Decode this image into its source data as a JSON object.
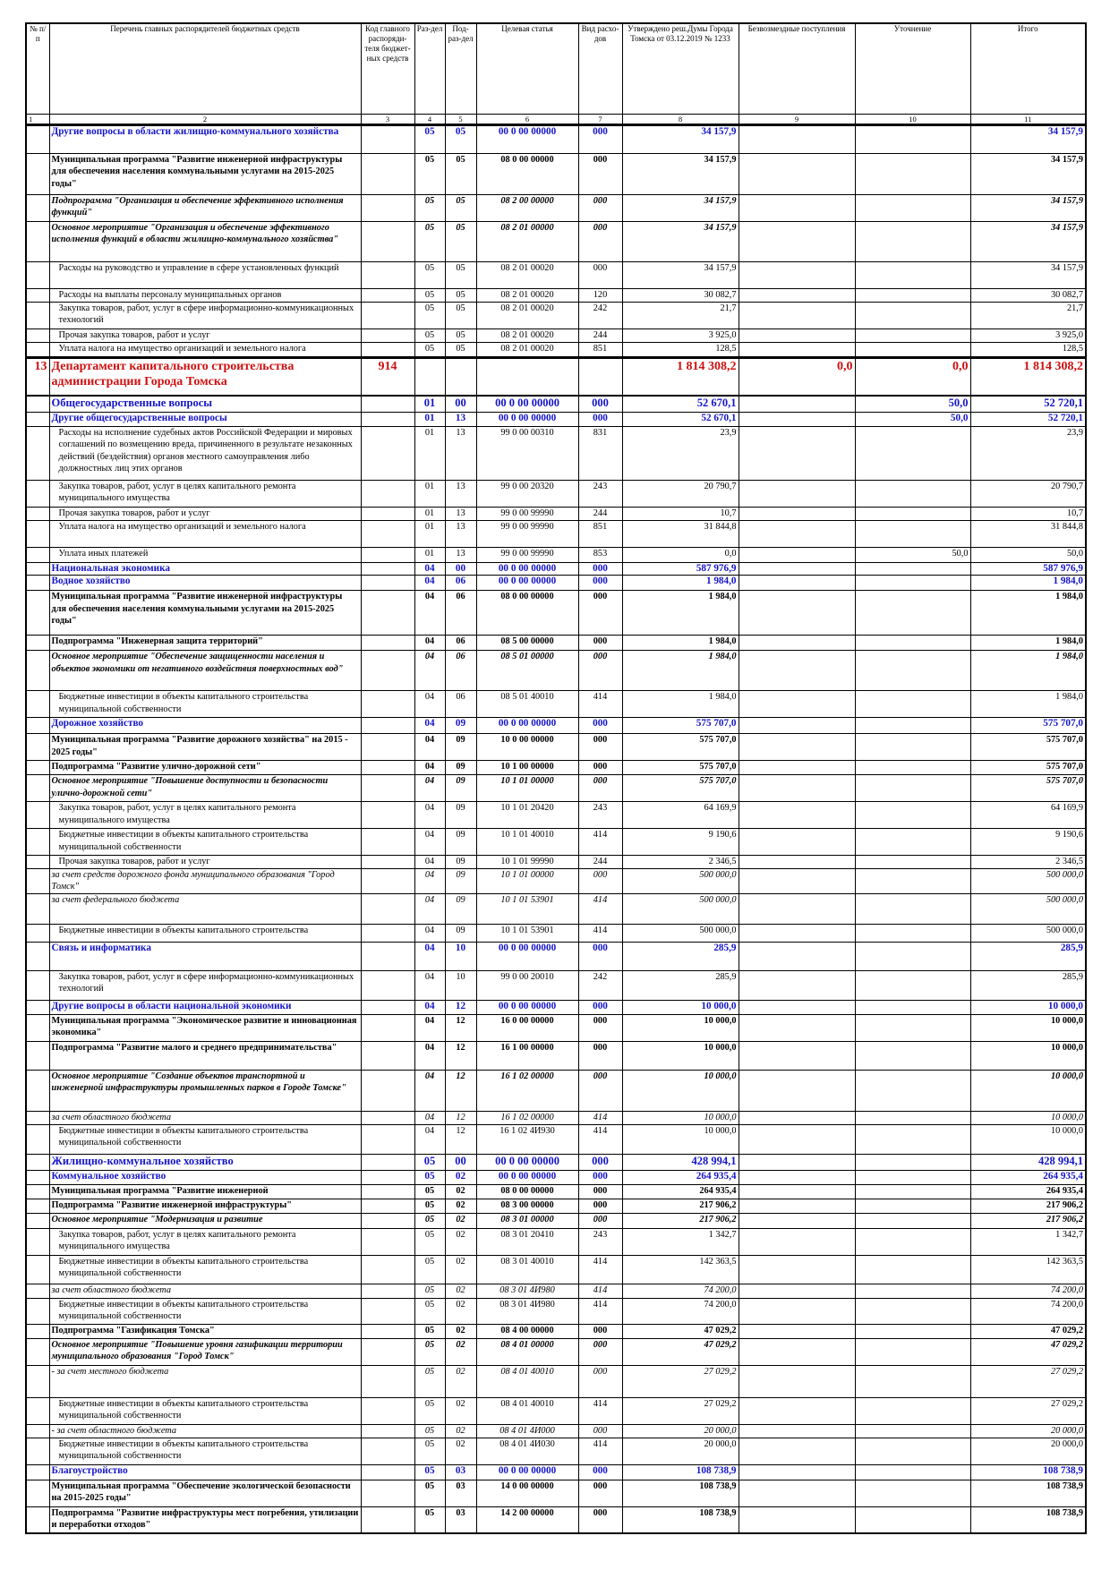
{
  "table": {
    "header": [
      "№ п/п",
      "Перечень главных распорядителей бюджетных средств",
      "Код главного распоряди-теля бюджет-ных средств",
      "Раз-дел",
      "Под-раз-дел",
      "Целевая статья",
      "Вид расхо-дов",
      "Утверждено реш.Думы Города Томска от 03.12.2019 № 1233",
      "Безвозмездные поступления",
      "Уточнение",
      "Итого"
    ],
    "numbers": [
      "1",
      "2",
      "3",
      "4",
      "5",
      "6",
      "7",
      "8",
      "9",
      "10",
      "11"
    ],
    "rows": [
      [
        null,
        "Другие вопросы в области жилищно-коммунального хозяйства",
        null,
        "05",
        "05",
        "00 0 00 00000",
        "000",
        "34 157,9",
        null,
        null,
        "34 157,9"
      ],
      [
        null,
        "Муниципальная программа \"Развитие инженерной инфраструктуры для обеспечения населения коммунальными услугами на 2015-2025 годы\"",
        null,
        "05",
        "05",
        "08 0 00 00000",
        "000",
        "34 157,9",
        null,
        null,
        "34 157,9"
      ],
      [
        null,
        "Подпрограмма \"Организация и обеспечение эффективного исполнения функций\"",
        null,
        "05",
        "05",
        "08 2 00 00000",
        "000",
        "34 157,9",
        null,
        null,
        "34 157,9"
      ],
      [
        null,
        "Основное мероприятие \"Организация и обеспечение эффективного исполнения функций в области жилищно-коммунального хозяйства\"",
        null,
        "05",
        "05",
        "08 2 01 00000",
        "000",
        "34 157,9",
        null,
        null,
        "34 157,9"
      ],
      [
        null,
        "Расходы на руководство и управление в сфере установленных функций",
        null,
        "05",
        "05",
        "08 2 01 00020",
        "000",
        "34 157,9",
        null,
        null,
        "34 157,9"
      ],
      [
        null,
        "Расходы на выплаты персоналу муниципальных органов",
        null,
        "05",
        "05",
        "08 2 01 00020",
        "120",
        "30 082,7",
        null,
        null,
        "30 082,7"
      ],
      [
        null,
        "Закупка товаров, работ, услуг в сфере информационно-коммуникационных технологий",
        null,
        "05",
        "05",
        "08 2 01 00020",
        "242",
        "21,7",
        null,
        null,
        "21,7"
      ],
      [
        null,
        "Прочая закупка товаров, работ и услуг",
        null,
        "05",
        "05",
        "08 2 01 00020",
        "244",
        "3 925,0",
        null,
        null,
        "3 925,0"
      ],
      [
        null,
        "Уплата налога на имущество организаций и земельного налога",
        null,
        "05",
        "05",
        "08 2 01 00020",
        "851",
        "128,5",
        null,
        null,
        "128,5"
      ],
      [
        "13",
        "Департамент капитального строительства администрации Города Томска",
        "914",
        null,
        null,
        null,
        null,
        "1 814 308,2",
        "0,0",
        "0,0",
        "1 814 308,2"
      ],
      [
        null,
        "Общегосударственные вопросы",
        null,
        "01",
        "00",
        "00 0 00 00000",
        "000",
        "52 670,1",
        null,
        "50,0",
        "52 720,1"
      ],
      [
        null,
        "Другие общегосударственные вопросы",
        null,
        "01",
        "13",
        "00 0 00 00000",
        "000",
        "52 670,1",
        null,
        "50,0",
        "52 720,1"
      ],
      [
        null,
        "Расходы на исполнение судебных актов Российской Федерации и мировых соглашений по возмещению вреда, причиненного в результате незаконных действий (бездействия) органов местного самоуправления либо должностных лиц этих органов",
        null,
        "01",
        "13",
        "99 0 00 00310",
        "831",
        "23,9",
        null,
        null,
        "23,9"
      ],
      [
        null,
        "Закупка товаров, работ, услуг в целях капитального ремонта муниципального имущества",
        null,
        "01",
        "13",
        "99 0 00 20320",
        "243",
        "20 790,7",
        null,
        null,
        "20 790,7"
      ],
      [
        null,
        "Прочая закупка товаров, работ и услуг",
        null,
        "01",
        "13",
        "99 0 00 99990",
        "244",
        "10,7",
        null,
        null,
        "10,7"
      ],
      [
        null,
        "Уплата налога на имущество организаций и земельного налога",
        null,
        "01",
        "13",
        "99 0 00 99990",
        "851",
        "31 844,8",
        null,
        null,
        "31 844,8"
      ],
      [
        null,
        "Уплата иных платежей",
        null,
        "01",
        "13",
        "99 0 00 99990",
        "853",
        "0,0",
        null,
        "50,0",
        "50,0"
      ],
      [
        null,
        "Национальная экономика",
        null,
        "04",
        "00",
        "00 0 00 00000",
        "000",
        "587 976,9",
        null,
        null,
        "587 976,9"
      ],
      [
        null,
        "Водное хозяйство",
        null,
        "04",
        "06",
        "00 0 00 00000",
        "000",
        "1 984,0",
        null,
        null,
        "1 984,0"
      ],
      [
        null,
        "Муниципальная программа \"Развитие инженерной инфраструктуры для обеспечения населения коммунальными услугами на 2015-2025 годы\"",
        null,
        "04",
        "06",
        "08 0 00 00000",
        "000",
        "1 984,0",
        null,
        null,
        "1 984,0"
      ],
      [
        null,
        "Подпрограмма \"Инженерная защита территорий\"",
        null,
        "04",
        "06",
        "08 5 00 00000",
        "000",
        "1 984,0",
        null,
        null,
        "1 984,0"
      ],
      [
        null,
        "Основное мероприятие \"Обеспечение защищенности населения и объектов экономики от негативного воздействия поверхностных вод\"",
        null,
        "04",
        "06",
        "08 5 01 00000",
        "000",
        "1 984,0",
        null,
        null,
        "1 984,0"
      ],
      [
        null,
        "Бюджетные инвестиции в объекты капитального строительства муниципальной собственности",
        null,
        "04",
        "06",
        "08 5 01 40010",
        "414",
        "1 984,0",
        null,
        null,
        "1 984,0"
      ],
      [
        null,
        "Дорожное хозяйство",
        null,
        "04",
        "09",
        "00 0 00 00000",
        "000",
        "575 707,0",
        null,
        null,
        "575 707,0"
      ],
      [
        null,
        "Муниципальная программа \"Развитие дорожного хозяйства\" на 2015 - 2025 годы\"",
        null,
        "04",
        "09",
        "10 0 00 00000",
        "000",
        "575 707,0",
        null,
        null,
        "575 707,0"
      ],
      [
        null,
        "Подпрограмма \"Развитие улично-дорожной сети\"",
        null,
        "04",
        "09",
        "10 1 00 00000",
        "000",
        "575 707,0",
        null,
        null,
        "575 707,0"
      ],
      [
        null,
        "Основное мероприятие \"Повышение доступности и безопасности улично-дорожной сети\"",
        null,
        "04",
        "09",
        "10 1 01 00000",
        "000",
        "575 707,0",
        null,
        null,
        "575 707,0"
      ],
      [
        null,
        "Закупка товаров, работ, услуг в целях капитального ремонта муниципального имущества",
        null,
        "04",
        "09",
        "10 1 01 20420",
        "243",
        "64 169,9",
        null,
        null,
        "64 169,9"
      ],
      [
        null,
        "Бюджетные инвестиции в объекты капитального строительства муниципальной собственности",
        null,
        "04",
        "09",
        "10 1 01 40010",
        "414",
        "9 190,6",
        null,
        null,
        "9 190,6"
      ],
      [
        null,
        "Прочая закупка товаров, работ и услуг",
        null,
        "04",
        "09",
        "10 1 01 99990",
        "244",
        "2 346,5",
        null,
        null,
        "2 346,5"
      ],
      [
        null,
        "за счет средств дорожного фонда муниципального образования \"Город Томск\"",
        null,
        "04",
        "09",
        "10 1 01 00000",
        "000",
        "500 000,0",
        null,
        null,
        "500 000,0"
      ],
      [
        null,
        "за счет федерального бюджета",
        null,
        "04",
        "09",
        "10 1 01 53901",
        "414",
        "500 000,0",
        null,
        null,
        "500 000,0"
      ],
      [
        null,
        "Бюджетные инвестиции в объекты капитального строительства",
        null,
        "04",
        "09",
        "10 1 01 53901",
        "414",
        "500 000,0",
        null,
        null,
        "500 000,0"
      ],
      [
        null,
        "Связь и информатика",
        null,
        "04",
        "10",
        "00 0 00 00000",
        "000",
        "285,9",
        null,
        null,
        "285,9"
      ],
      [
        null,
        "Закупка товаров, работ, услуг в сфере информационно-коммуникационных технологий",
        null,
        "04",
        "10",
        "99 0 00 20010",
        "242",
        "285,9",
        null,
        null,
        "285,9"
      ],
      [
        null,
        "Другие вопросы в области национальной экономики",
        null,
        "04",
        "12",
        "00 0 00 00000",
        "000",
        "10 000,0",
        null,
        null,
        "10 000,0"
      ],
      [
        null,
        "Муниципальная программа \"Экономическое развитие и инновационная экономика\"",
        null,
        "04",
        "12",
        "16 0 00 00000",
        "000",
        "10 000,0",
        null,
        null,
        "10 000,0"
      ],
      [
        null,
        "Подпрограмма \"Развитие малого и среднего предпринимательства\"",
        null,
        "04",
        "12",
        "16 1 00 00000",
        "000",
        "10 000,0",
        null,
        null,
        "10 000,0"
      ],
      [
        null,
        "Основное мероприятие \"Создание объектов транспортной и инженерной инфраструктуры промышленных парков в Городе Томске\"",
        null,
        "04",
        "12",
        "16 1 02 00000",
        "000",
        "10 000,0",
        null,
        null,
        "10 000,0"
      ],
      [
        null,
        "за счет областного бюджета",
        null,
        "04",
        "12",
        "16 1 02 00000",
        "414",
        "10 000,0",
        null,
        null,
        "10 000,0"
      ],
      [
        null,
        "Бюджетные инвестиции в объекты капитального строительства муниципальной собственности",
        null,
        "04",
        "12",
        "16 1 02 4И930",
        "414",
        "10 000,0",
        null,
        null,
        "10 000,0"
      ],
      [
        null,
        "Жилищно-коммунальное хозяйство",
        null,
        "05",
        "00",
        "00 0 00 00000",
        "000",
        "428 994,1",
        null,
        null,
        "428 994,1"
      ],
      [
        null,
        "Коммунальное хозяйство",
        null,
        "05",
        "02",
        "00 0 00 00000",
        "000",
        "264 935,4",
        null,
        null,
        "264 935,4"
      ],
      [
        null,
        "Муниципальная программа \"Развитие инженерной",
        null,
        "05",
        "02",
        "08 0 00 00000",
        "000",
        "264 935,4",
        null,
        null,
        "264 935,4"
      ],
      [
        null,
        "Подпрограмма \"Развитие инженерной инфраструктуры\"",
        null,
        "05",
        "02",
        "08 3 00 00000",
        "000",
        "217 906,2",
        null,
        null,
        "217 906,2"
      ],
      [
        null,
        "Основное мероприятие \"Модернизация и развитие",
        null,
        "05",
        "02",
        "08 3 01 00000",
        "000",
        "217 906,2",
        null,
        null,
        "217 906,2"
      ],
      [
        null,
        "Закупка товаров, работ, услуг в целях капитального ремонта муниципального имущества",
        null,
        "05",
        "02",
        "08 3 01 20410",
        "243",
        "1 342,7",
        null,
        null,
        "1 342,7"
      ],
      [
        null,
        "Бюджетные инвестиции в объекты капитального строительства муниципальной собственности",
        null,
        "05",
        "02",
        "08 3 01 40010",
        "414",
        "142 363,5",
        null,
        null,
        "142 363,5"
      ],
      [
        null,
        "за счет областного бюджета",
        null,
        "05",
        "02",
        "08 3 01 4И980",
        "414",
        "74 200,0",
        null,
        null,
        "74 200,0"
      ],
      [
        null,
        "Бюджетные инвестиции в объекты капитального строительства муниципальной собственности",
        null,
        "05",
        "02",
        "08 3 01 4И980",
        "414",
        "74 200,0",
        null,
        null,
        "74 200,0"
      ],
      [
        null,
        "Подпрограмма \"Газификация Томска\"",
        null,
        "05",
        "02",
        "08 4 00 00000",
        "000",
        "47 029,2",
        null,
        null,
        "47 029,2"
      ],
      [
        null,
        "Основное мероприятие \"Повышение уровня газификации территории муниципального образования \"Город Томск\"",
        null,
        "05",
        "02",
        "08 4 01 00000",
        "000",
        "47 029,2",
        null,
        null,
        "47 029,2"
      ],
      [
        null,
        "- за счет местного бюджета",
        null,
        "05",
        "02",
        "08 4 01 40010",
        "000",
        "27 029,2",
        null,
        null,
        "27 029,2"
      ],
      [
        null,
        "Бюджетные инвестиции в объекты капитального строительства муниципальной собственности",
        null,
        "05",
        "02",
        "08 4 01 40010",
        "414",
        "27 029,2",
        null,
        null,
        "27 029,2"
      ],
      [
        null,
        "- за счет областного бюджета",
        null,
        "05",
        "02",
        "08 4 01 4И000",
        "000",
        "20 000,0",
        null,
        null,
        "20 000,0"
      ],
      [
        null,
        "Бюджетные инвестиции в объекты капитального строительства муниципальной собственности",
        null,
        "05",
        "02",
        "08 4 01 4И030",
        "414",
        "20 000,0",
        null,
        null,
        "20 000,0"
      ],
      [
        null,
        "Благоустройство",
        null,
        "05",
        "03",
        "00 0 00 00000",
        "000",
        "108 738,9",
        null,
        null,
        "108 738,9"
      ],
      [
        null,
        "Муниципальная программа \"Обеспечение экологической безопасности на 2015-2025 годы\"",
        null,
        "05",
        "03",
        "14 0 00 00000",
        "000",
        "108 738,9",
        null,
        null,
        "108 738,9"
      ],
      [
        null,
        "Подпрограмма \"Развитие инфраструктуры мест погребения, утилизации и переработки отходов\"",
        null,
        "05",
        "03",
        "14 2 00 00000",
        "000",
        "108 738,9",
        null,
        null,
        "108 738,9"
      ]
    ]
  }
}
